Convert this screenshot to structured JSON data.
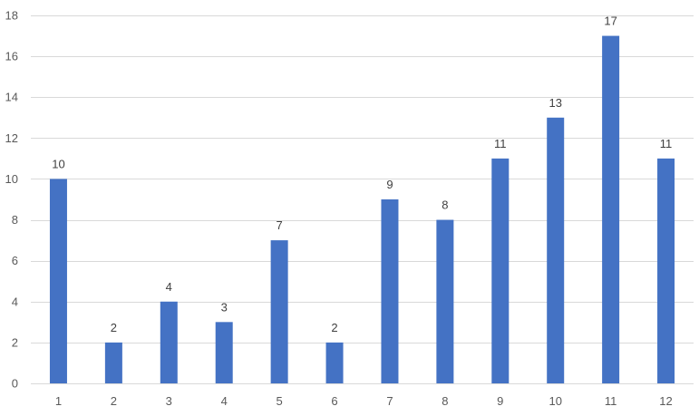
{
  "chart_data": {
    "type": "bar",
    "categories": [
      "1",
      "2",
      "3",
      "4",
      "5",
      "6",
      "7",
      "8",
      "9",
      "10",
      "11",
      "12"
    ],
    "values": [
      10,
      2,
      4,
      3,
      7,
      2,
      9,
      8,
      11,
      13,
      17,
      11
    ],
    "title": "",
    "xlabel": "",
    "ylabel": "",
    "ylim": [
      0,
      18
    ],
    "yticks": [
      0,
      2,
      4,
      6,
      8,
      10,
      12,
      14,
      16,
      18
    ],
    "grid": true,
    "legend": "none",
    "data_labels": true,
    "colors": {
      "bar": "#4472c4",
      "grid": "#d9d9d9",
      "tick_text": "#595959",
      "label_text": "#404040"
    }
  }
}
